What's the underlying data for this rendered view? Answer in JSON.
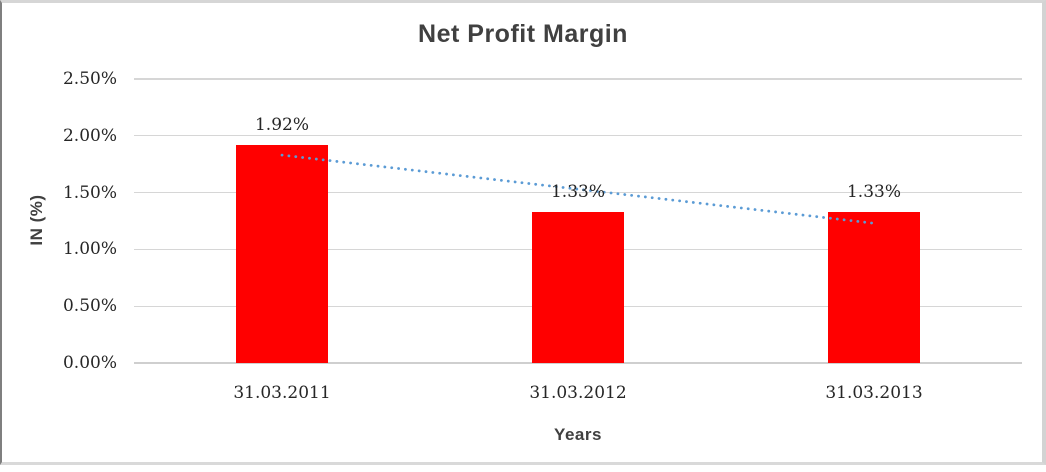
{
  "chart": {
    "title": "Net Profit Margin",
    "xlabel": "Years",
    "ylabel": "IN (%)"
  },
  "colors": {
    "bar": "#ff0000",
    "trendline": "#5b9bd5",
    "gridline": "#d6d6d6",
    "axis_line": "#cfcfcf",
    "title_text": "#404040",
    "tick_text": "#262626",
    "frame_border": "#d3d3d3"
  },
  "chart_data": {
    "type": "bar",
    "title": "Net Profit Margin",
    "xlabel": "Years",
    "ylabel": "IN (%)",
    "categories": [
      "31.03.2011",
      "31.03.2012",
      "31.03.2013"
    ],
    "series": [
      {
        "name": "Net Profit Margin",
        "values": [
          1.92,
          1.33,
          1.33
        ]
      }
    ],
    "data_labels": [
      "1.92%",
      "1.33%",
      "1.33%"
    ],
    "yticks": [
      {
        "value": 0.0,
        "label": "0.00%"
      },
      {
        "value": 0.5,
        "label": "0.50%"
      },
      {
        "value": 1.0,
        "label": "1.00%"
      },
      {
        "value": 1.5,
        "label": "1.50%"
      },
      {
        "value": 2.0,
        "label": "2.00%"
      },
      {
        "value": 2.5,
        "label": "2.50%"
      }
    ],
    "ylim": [
      0,
      2.5
    ],
    "grid": true,
    "legend": "none",
    "trendline": {
      "type": "linear",
      "style": "dotted",
      "y_start": 1.83,
      "y_end": 1.23
    }
  }
}
